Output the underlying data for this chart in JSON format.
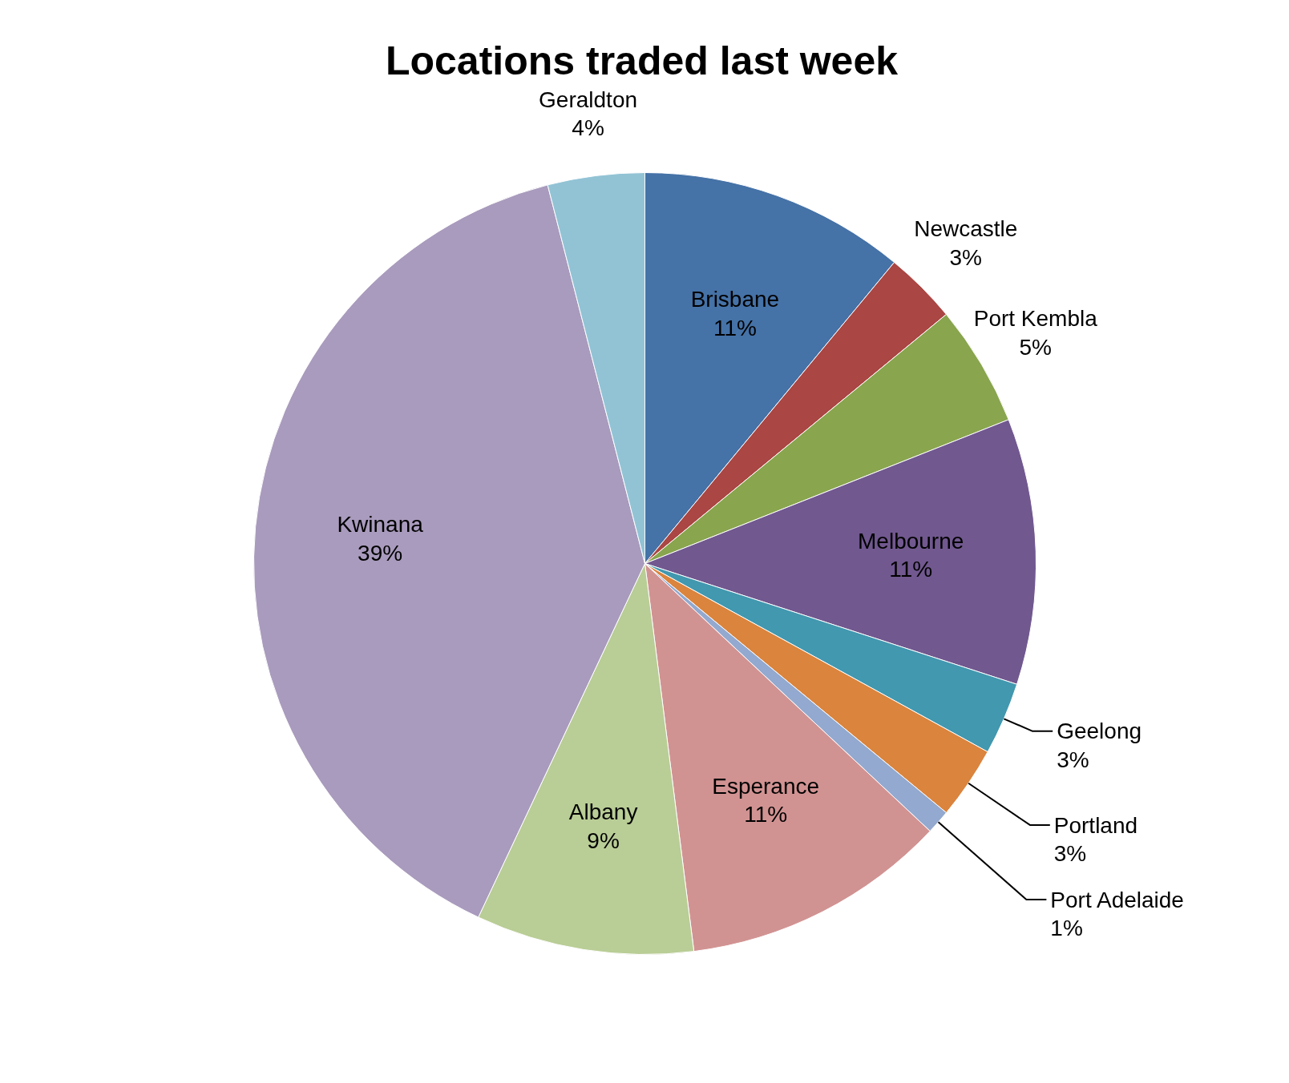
{
  "chart_data": {
    "type": "pie",
    "title": "Locations traded last week",
    "categories": [
      "Brisbane",
      "Newcastle",
      "Port Kembla",
      "Melbourne",
      "Geelong",
      "Portland",
      "Port Adelaide",
      "Esperance",
      "Albany",
      "Kwinana",
      "Geraldton"
    ],
    "values": [
      11,
      3,
      5,
      11,
      3,
      3,
      1,
      11,
      9,
      39,
      4
    ],
    "colors": [
      "#4572a7",
      "#aa4643",
      "#89a54e",
      "#71588f",
      "#4198af",
      "#db843d",
      "#93a9cf",
      "#d19392",
      "#b9cd96",
      "#a99bbd",
      "#92c3d5"
    ],
    "value_labels": [
      "11%",
      "3%",
      "5%",
      "11%",
      "3%",
      "3%",
      "1%",
      "11%",
      "9%",
      "39%",
      "4%"
    ]
  }
}
